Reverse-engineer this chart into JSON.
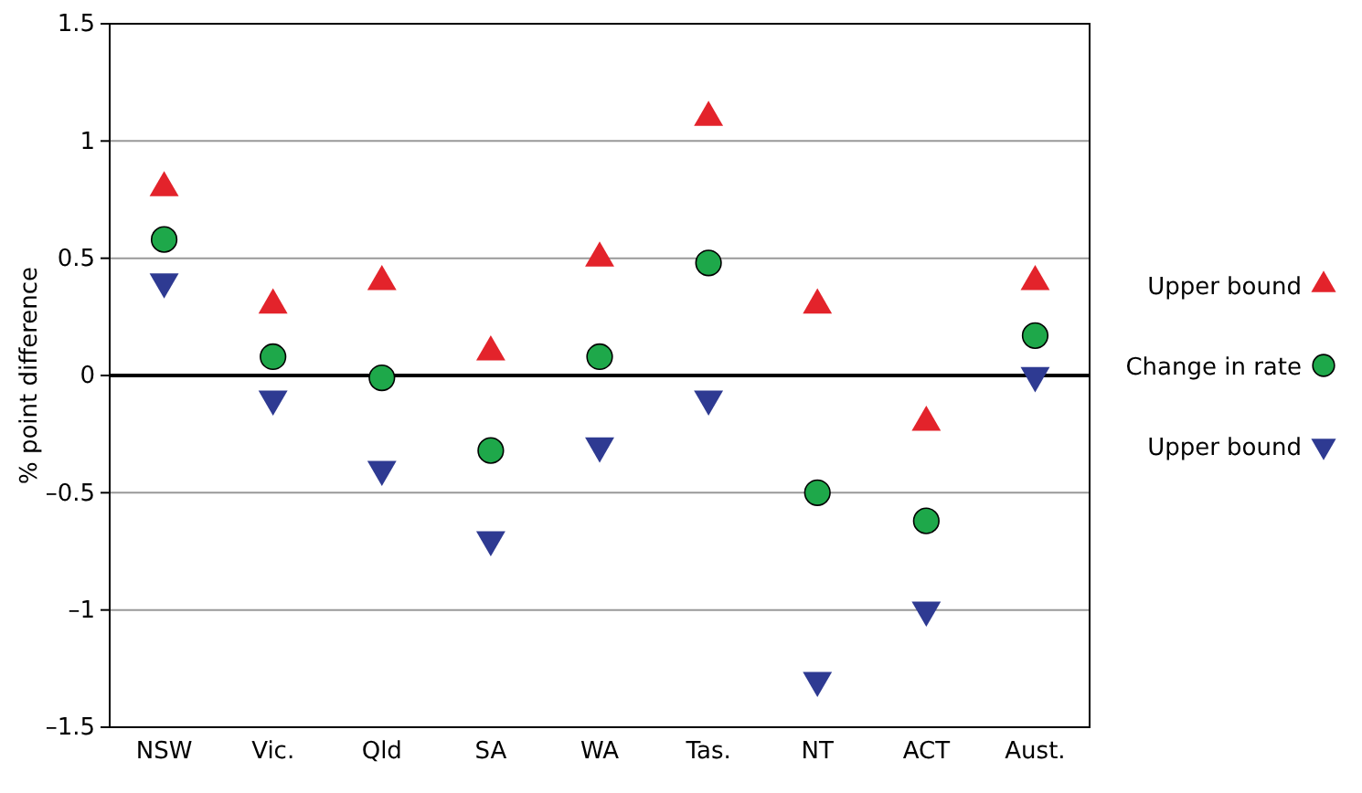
{
  "chart_data": {
    "type": "scatter",
    "ylabel": "% point difference",
    "categories": [
      "NSW",
      "Vic.",
      "Qld",
      "SA",
      "WA",
      "Tas.",
      "NT",
      "ACT",
      "Aust."
    ],
    "series": [
      {
        "name": "Upper bound",
        "color": "#e3232b",
        "marker": "triangle",
        "values": [
          0.8,
          0.3,
          0.4,
          0.1,
          0.5,
          1.1,
          0.3,
          -0.2,
          0.4
        ]
      },
      {
        "name": "Change in rate",
        "color": "#1ea84a",
        "marker": "circle",
        "values": [
          0.58,
          0.08,
          -0.01,
          -0.32,
          0.08,
          0.48,
          -0.5,
          -0.62,
          0.17
        ]
      },
      {
        "name": "Upper bound",
        "color": "#2e3a92",
        "marker": "triangle-down",
        "values": [
          0.4,
          -0.1,
          -0.4,
          -0.7,
          -0.3,
          -0.1,
          -1.3,
          -1.0,
          0.0
        ]
      }
    ],
    "ylim": [
      -1.5,
      1.5
    ],
    "yticks": [
      {
        "value": -1.5,
        "label": "–1.5"
      },
      {
        "value": -1,
        "label": "–1"
      },
      {
        "value": -0.5,
        "label": "–0.5"
      },
      0,
      0.5,
      1,
      1.5
    ],
    "ref_lines": [
      {
        "axis": "y",
        "value": 0,
        "color": "#000000"
      }
    ],
    "grid": "y",
    "legend": "right"
  }
}
